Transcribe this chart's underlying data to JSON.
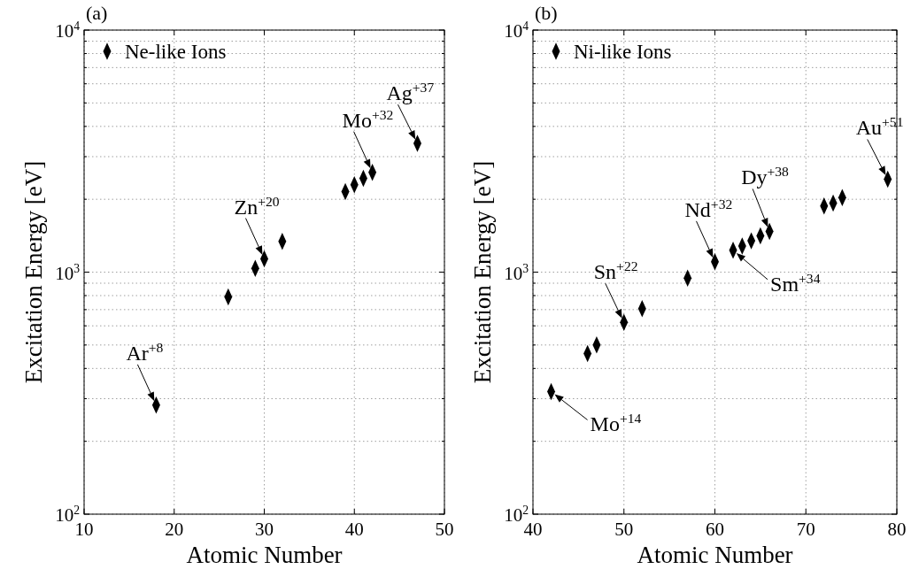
{
  "chart_data": [
    {
      "type": "scatter",
      "title": "(a)",
      "xlabel": "Atomic Number",
      "ylabel": "Excitation Energy [eV]",
      "log": "y",
      "grid": true,
      "legend": "top left",
      "marker": "diamond",
      "xlim": [
        10,
        50
      ],
      "xticks": [
        10,
        20,
        30,
        40,
        50
      ],
      "ylim": [
        100,
        10000
      ],
      "yticks": [
        {
          "value": 100,
          "label": "10$^{2}$"
        },
        {
          "value": 1000,
          "label": "10$^{3}$"
        },
        {
          "value": 10000,
          "label": "10$^{4}$"
        }
      ],
      "series": [
        {
          "name": "Ne-like Ions",
          "color": "#000000",
          "x": [
            18,
            26,
            29,
            30,
            32,
            39,
            40,
            41,
            42,
            47
          ],
          "values": [
            282,
            790,
            1036,
            1134,
            1339,
            2150,
            2296,
            2443,
            2585,
            3401
          ]
        }
      ],
      "annotations": [
        {
          "text": "Ar$^{+8}$",
          "x": 18,
          "y": 282
        },
        {
          "text": "Zn$^{+20}$",
          "x": 30,
          "y": 1134
        },
        {
          "text": "Mo$^{+32}$",
          "x": 42,
          "y": 2585
        },
        {
          "text": "Ag$^{+37}$",
          "x": 47,
          "y": 3401
        }
      ]
    },
    {
      "type": "scatter",
      "title": "(b)",
      "xlabel": "Atomic Number",
      "ylabel": "Excitation Energy [eV]",
      "log": "y",
      "grid": true,
      "legend": "top left",
      "marker": "diamond",
      "xlim": [
        40,
        80
      ],
      "xticks": [
        40,
        50,
        60,
        70,
        80
      ],
      "ylim": [
        100,
        10000
      ],
      "yticks": [
        {
          "value": 100,
          "label": "10$^{2}$"
        },
        {
          "value": 1000,
          "label": "10$^{3}$"
        },
        {
          "value": 10000,
          "label": "10$^{4}$"
        }
      ],
      "series": [
        {
          "name": "Ni-like Ions",
          "color": "#000000",
          "x": [
            42,
            46,
            47,
            50,
            52,
            57,
            60,
            62,
            63,
            64,
            65,
            66,
            72,
            73,
            74,
            79
          ],
          "values": [
            321,
            461,
            500,
            620,
            706,
            944,
            1103,
            1231,
            1282,
            1347,
            1411,
            1474,
            1875,
            1928,
            2033,
            2421
          ]
        }
      ],
      "annotations": [
        {
          "text": "Mo$^{+14}$",
          "x": 42,
          "y": 321
        },
        {
          "text": "Sn$^{+22}$",
          "x": 50,
          "y": 620
        },
        {
          "text": "Nd$^{+32}$",
          "x": 60,
          "y": 1103
        },
        {
          "text": "Sm$^{+34}$",
          "x": 62,
          "y": 1231
        },
        {
          "text": "Dy$^{+38}$",
          "x": 66,
          "y": 1474
        },
        {
          "text": "Au$^{+51}$",
          "x": 79,
          "y": 2421
        }
      ]
    }
  ]
}
